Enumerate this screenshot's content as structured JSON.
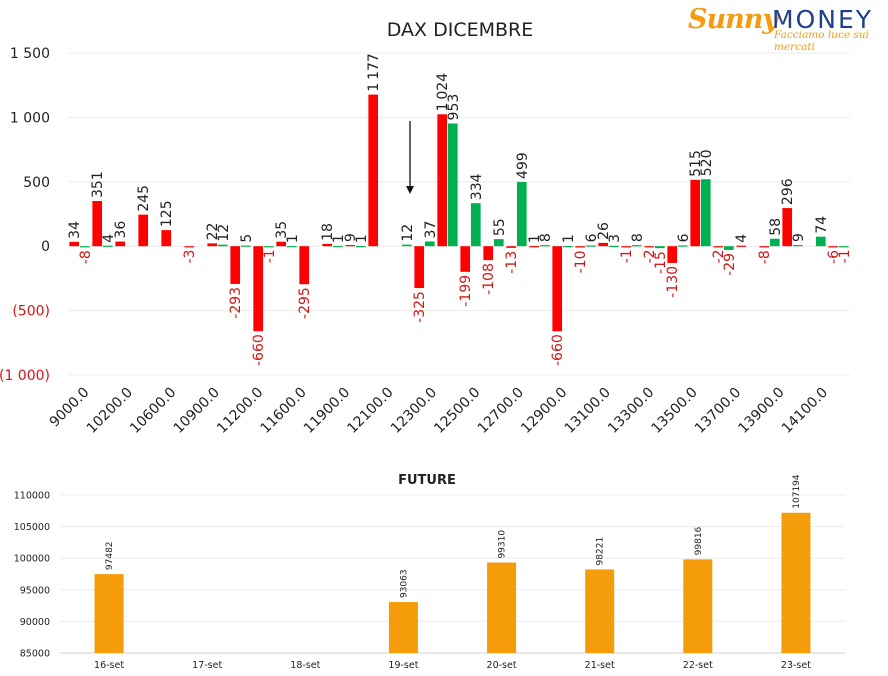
{
  "logo": {
    "brand_part1": "Sunny",
    "brand_part2": "MONEY",
    "tagline": "Facciamo luce sui mercati"
  },
  "colors": {
    "red": "#ff0000",
    "green": "#00b050",
    "orange": "#f59c0b",
    "negative_label": "#d41616",
    "grid": "#ececec",
    "text": "#222222"
  },
  "chart_data": [
    {
      "type": "bar",
      "title": "DAX DICEMBRE",
      "ylim": [
        -1000,
        1500
      ],
      "yticks": [
        {
          "value": 1500,
          "label": "1 500"
        },
        {
          "value": 1000,
          "label": "1 000"
        },
        {
          "value": 500,
          "label": "500"
        },
        {
          "value": 0,
          "label": "0"
        },
        {
          "value": -500,
          "label": "(500)"
        },
        {
          "value": -1000,
          "label": "(1 000)"
        }
      ],
      "xtick_labels": [
        "9000.0",
        "10200.0",
        "10600.0",
        "10900.0",
        "11200.0",
        "11600.0",
        "11900.0",
        "12100.0",
        "12300.0",
        "12500.0",
        "12700.0",
        "12900.0",
        "13100.0",
        "13300.0",
        "13500.0",
        "13700.0",
        "13900.0",
        "14100.0"
      ],
      "strike_pairs": [
        {
          "red": 34,
          "green": -8
        },
        {
          "red": 351,
          "green": 4
        },
        {
          "red": 36,
          "green": null
        },
        {
          "red": 245,
          "green": null
        },
        {
          "red": 125,
          "green": null
        },
        {
          "red": -3,
          "green": null
        },
        {
          "red": 22,
          "green": 12
        },
        {
          "red": -293,
          "green": 5
        },
        {
          "red": -660,
          "green": -1
        },
        {
          "red": 35,
          "green": 1
        },
        {
          "red": -295,
          "green": null
        },
        {
          "red": 18,
          "green": 1
        },
        {
          "red": 9,
          "green": 1
        },
        {
          "red": 1177,
          "green": null
        },
        {
          "red": null,
          "green": 12
        },
        {
          "red": -325,
          "green": 37
        },
        {
          "red": 1024,
          "green": 953
        },
        {
          "red": -199,
          "green": 334
        },
        {
          "red": -108,
          "green": 55
        },
        {
          "red": -13,
          "green": 499
        },
        {
          "red": 1,
          "green": 8
        },
        {
          "red": -660,
          "green": 1
        },
        {
          "red": -10,
          "green": 6
        },
        {
          "red": 26,
          "green": 3
        },
        {
          "red": -1,
          "green": 8
        },
        {
          "red": -2,
          "green": -15
        },
        {
          "red": -130,
          "green": 6
        },
        {
          "red": 515,
          "green": 520
        },
        {
          "red": -2,
          "green": -29
        },
        {
          "red": 4,
          "green": null
        },
        {
          "red": -8,
          "green": 58
        },
        {
          "red": 296,
          "green": 9
        },
        {
          "red": null,
          "green": 74
        },
        {
          "red": -6,
          "green": -1
        }
      ]
    },
    {
      "type": "bar",
      "title": "FUTURE",
      "ylim": [
        85000,
        110000
      ],
      "yticks": [
        85000,
        90000,
        95000,
        100000,
        105000,
        110000
      ],
      "categories": [
        "16-set",
        "17-set",
        "18-set",
        "19-set",
        "20-set",
        "21-set",
        "22-set",
        "23-set"
      ],
      "values": [
        97482,
        null,
        null,
        93063,
        99310,
        98221,
        99816,
        107194
      ]
    }
  ]
}
